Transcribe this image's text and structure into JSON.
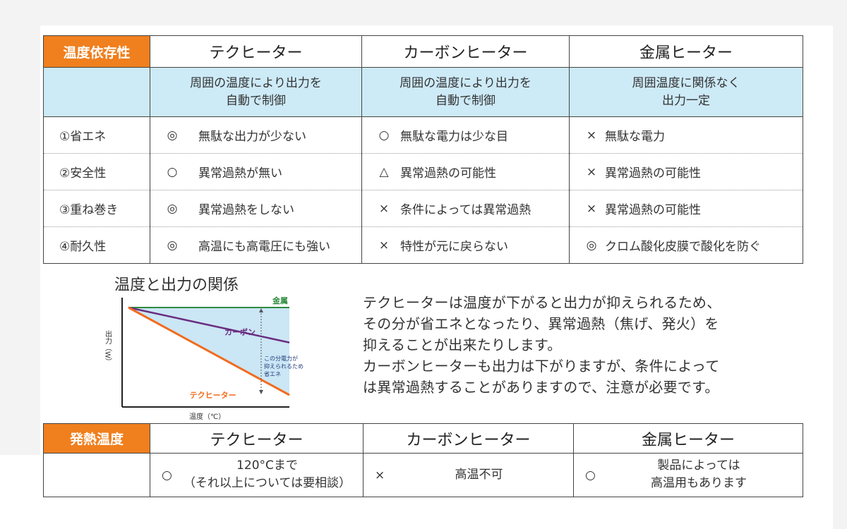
{
  "table1": {
    "tag": "温度依存性",
    "headers": [
      "テクヒーター",
      "カーボンヒーター",
      "金属ヒーター"
    ],
    "desc": [
      [
        "周囲の温度により出力を",
        "自動で制御"
      ],
      [
        "周囲の温度により出力を",
        "自動で制御"
      ],
      [
        "周囲温度に関係なく",
        "出力一定"
      ]
    ],
    "rows": [
      {
        "label": "①省エネ",
        "cells": [
          {
            "mark": "◎",
            "text": "無駄な出力が少ない"
          },
          {
            "mark": "○",
            "text": "無駄な電力は少な目"
          },
          {
            "mark": "×",
            "text": "無駄な電力"
          }
        ]
      },
      {
        "label": "②安全性",
        "cells": [
          {
            "mark": "○",
            "text": "異常過熱が無い"
          },
          {
            "mark": "△",
            "text": "異常過熱の可能性"
          },
          {
            "mark": "×",
            "text": "異常過熱の可能性"
          }
        ]
      },
      {
        "label": "③重ね巻き",
        "cells": [
          {
            "mark": "◎",
            "text": "異常過熱をしない"
          },
          {
            "mark": "×",
            "text": "条件によっては異常過熱"
          },
          {
            "mark": "×",
            "text": "異常過熱の可能性"
          }
        ]
      },
      {
        "label": "④耐久性",
        "cells": [
          {
            "mark": "◎",
            "text": "高温にも高電圧にも強い"
          },
          {
            "mark": "×",
            "text": "特性が元に戻らない"
          },
          {
            "mark": "◎",
            "text": "クロム酸化皮膜で酸化を防ぐ"
          }
        ]
      }
    ]
  },
  "chart": {
    "title": "温度と出力の関係",
    "ylabel": "出力（W）",
    "xlabel": "温度（℃）",
    "annotation": [
      "この分電力が",
      "抑えられるため",
      "省エネ"
    ],
    "colors": {
      "metal": "#2e8b3e",
      "carbon": "#6a2d80",
      "tech": "#f26b1d",
      "shade": "#cbe6f5",
      "axis": "#222222"
    }
  },
  "chart_data": {
    "type": "line",
    "title": "",
    "xlabel": "温度（℃）",
    "ylabel": "出力（W）",
    "grid": false,
    "x": [
      0,
      1
    ],
    "series": [
      {
        "name": "金属",
        "values": [
          1.0,
          1.0
        ]
      },
      {
        "name": "カーボン",
        "values": [
          1.0,
          0.6
        ]
      },
      {
        "name": "テクヒーター",
        "values": [
          1.0,
          0.0
        ]
      }
    ],
    "ylim": [
      0,
      1
    ],
    "xlim": [
      0,
      1
    ]
  },
  "paragraph": [
    "テクヒーターは温度が下がると出力が抑えられるため、",
    "その分が省エネとなったり、異常過熱（焦げ、発火）を",
    "抑えることが出来たりします。",
    "カーボンヒーターも出力は下がりますが、条件によって",
    "は異常過熱することがありますので、注意が必要です。"
  ],
  "table2": {
    "tag": "発熱温度",
    "headers": [
      "テクヒーター",
      "カーボンヒーター",
      "金属ヒーター"
    ],
    "cells": [
      {
        "mark": "○",
        "lines": [
          "120°Cまで",
          "（それ以上については要相談）"
        ]
      },
      {
        "mark": "×",
        "lines": [
          "高温不可"
        ]
      },
      {
        "mark": "○",
        "lines": [
          "製品によっては",
          "高温用もあります"
        ]
      }
    ]
  }
}
